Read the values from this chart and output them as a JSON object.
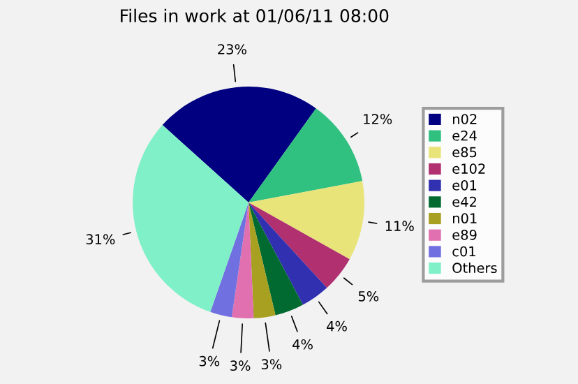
{
  "chart_data": {
    "type": "pie",
    "title": "Files in work at 01/06/11 08:00",
    "categories": [
      "n02",
      "e24",
      "e85",
      "e102",
      "e01",
      "e42",
      "n01",
      "e89",
      "c01",
      "Others"
    ],
    "values": [
      23,
      12,
      11,
      5,
      4,
      4,
      3,
      3,
      3,
      31
    ],
    "colors": [
      "#000080",
      "#30c080",
      "#e8e47a",
      "#b03070",
      "#3030b0",
      "#006a30",
      "#a8a020",
      "#e070b0",
      "#7070e0",
      "#80f0c8"
    ],
    "value_labels": [
      "23%",
      "12%",
      "11%",
      "5%",
      "4%",
      "4%",
      "3%",
      "3%",
      "3%",
      "31%"
    ],
    "legend": "right"
  }
}
